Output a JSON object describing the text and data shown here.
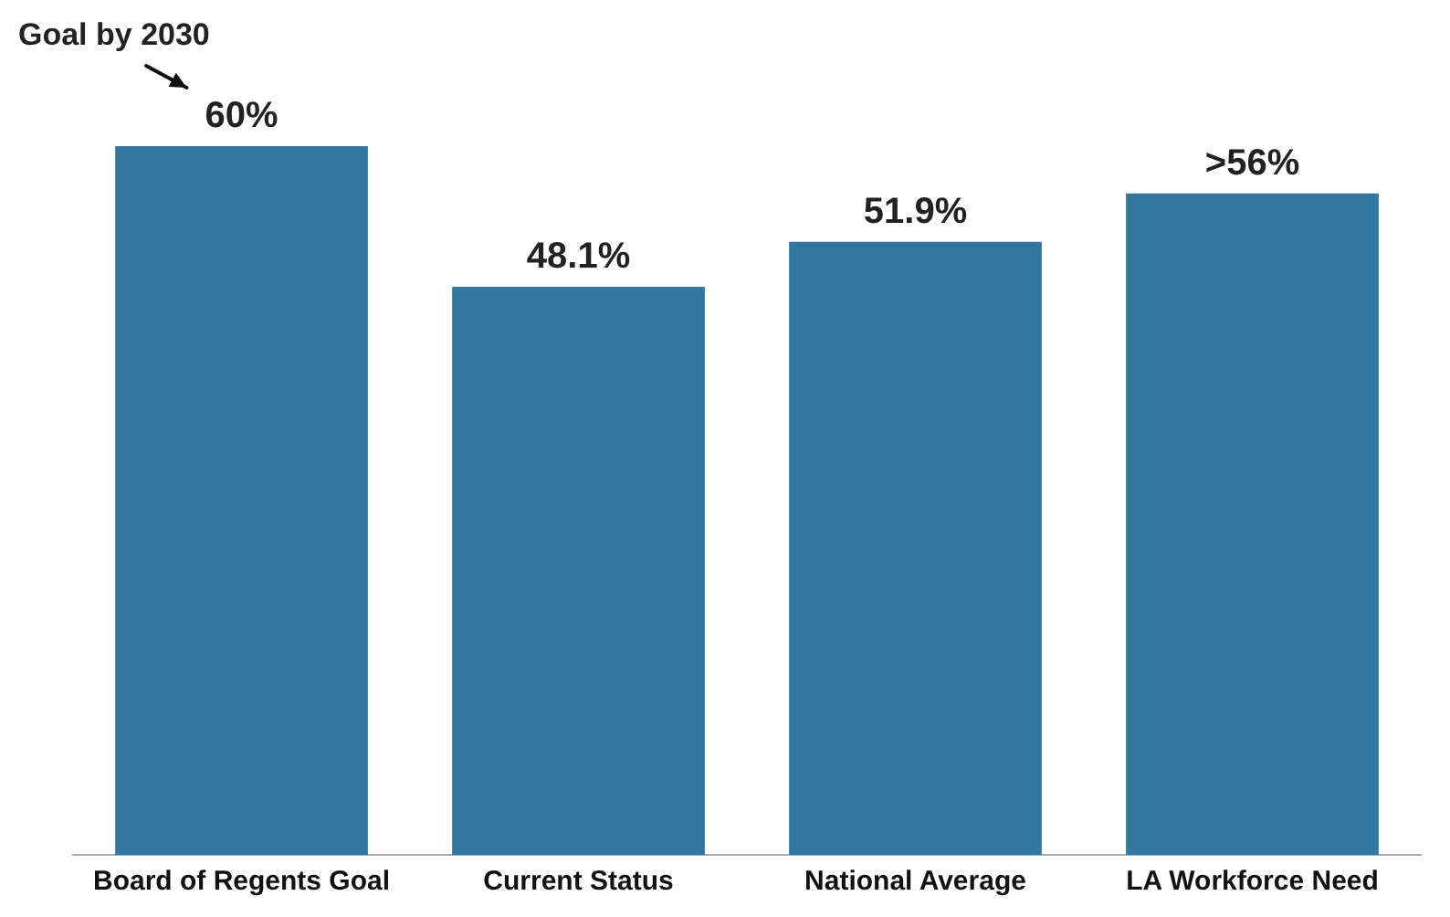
{
  "chart_data": {
    "type": "bar",
    "categories": [
      "Board of Regents Goal",
      "Current Status",
      "National Average",
      "LA Workforce Need"
    ],
    "values": [
      60,
      48.1,
      51.9,
      56
    ],
    "color": "#33779f",
    "value_labels": [
      "60%",
      "48.1%",
      "51.9%",
      ">56%"
    ],
    "annotations": [
      "Goal by 2030"
    ],
    "grid": false,
    "legend": false
  }
}
